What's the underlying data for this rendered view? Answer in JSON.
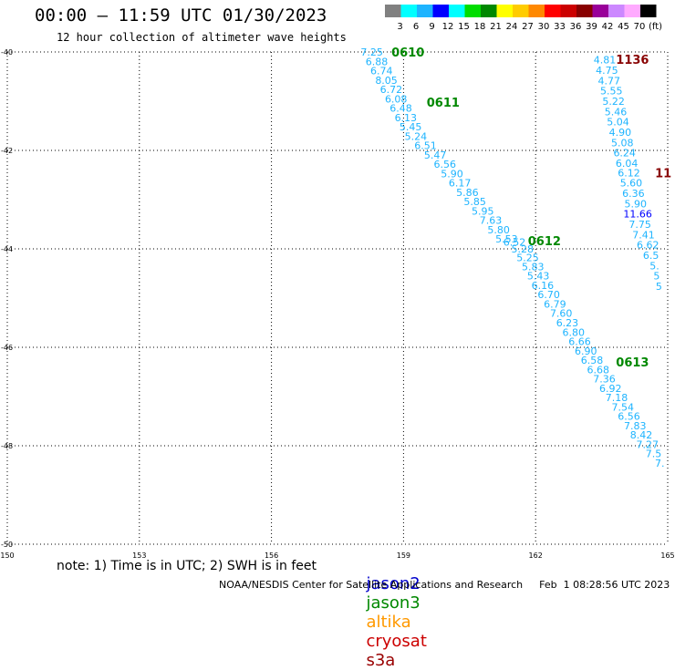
{
  "header": {
    "title": "00:00 – 11:59 UTC 01/30/2023",
    "subtitle": "12 hour collection of altimeter wave heights"
  },
  "colorbar": {
    "labels": [
      "3",
      "6",
      "9",
      "12",
      "15",
      "18",
      "21",
      "24",
      "27",
      "30",
      "33",
      "36",
      "39",
      "42",
      "45",
      "70",
      "(ft)"
    ],
    "colors": [
      "#808080",
      "#00ffff",
      "#1eb4ff",
      "#0000ff",
      "#00ffff",
      "#00dd00",
      "#008800",
      "#ffff00",
      "#ffcc00",
      "#ff8800",
      "#ff0000",
      "#cc0000",
      "#880000",
      "#990099",
      "#cc88ff",
      "#ffaaff",
      "#000000"
    ]
  },
  "footer": {
    "note": "note: 1) Time is in UTC; 2) SWH is in feet",
    "satellites": [
      {
        "name": "jason2",
        "color": "#0000cc"
      },
      {
        "name": "jason3",
        "color": "#008800"
      },
      {
        "name": "altika",
        "color": "#ff9900"
      },
      {
        "name": "cryosat",
        "color": "#cc0000"
      },
      {
        "name": "s3a",
        "color": "#990000"
      }
    ],
    "credit": "NOAA/NESDIS Center for Satellite Applications and Research",
    "generated": "Feb  1 08:28:56 UTC 2023"
  },
  "chart_data": {
    "type": "scatter",
    "title": "00:00 – 11:59 UTC 01/30/2023",
    "subtitle": "12 hour collection of altimeter wave heights",
    "xlim": [
      150,
      165
    ],
    "ylim": [
      -50,
      -40
    ],
    "x_ticks": [
      "150",
      "153",
      "156",
      "159",
      "162",
      "165"
    ],
    "y_ticks": [
      "-40",
      "-42",
      "-44",
      "-46",
      "-48",
      "-50"
    ],
    "grid": true,
    "units": "ft",
    "time_labels": [
      {
        "text": "0610",
        "lon": 159.1,
        "lat": -40.0,
        "color": "#008800"
      },
      {
        "text": "0611",
        "lon": 159.9,
        "lat": -41.02,
        "color": "#008800"
      },
      {
        "text": "0612",
        "lon": 162.2,
        "lat": -43.83,
        "color": "#008800"
      },
      {
        "text": "0613",
        "lon": 164.2,
        "lat": -46.3,
        "color": "#008800"
      },
      {
        "text": "1136",
        "lon": 164.2,
        "lat": -40.15,
        "color": "#880000"
      },
      {
        "text": "11",
        "lon": 164.9,
        "lat": -42.45,
        "color": "#880000"
      }
    ],
    "series": [
      {
        "name": "jason3",
        "color": "#1eb4ff",
        "points": [
          {
            "lon": 158.28,
            "lat": -40.0,
            "swh": "7.25"
          },
          {
            "lon": 158.39,
            "lat": -40.19,
            "swh": "6.88"
          },
          {
            "lon": 158.5,
            "lat": -40.38,
            "swh": "6.74"
          },
          {
            "lon": 158.61,
            "lat": -40.57,
            "swh": "8.05"
          },
          {
            "lon": 158.72,
            "lat": -40.76,
            "swh": "6.72"
          },
          {
            "lon": 158.83,
            "lat": -40.95,
            "swh": "6.08"
          },
          {
            "lon": 158.94,
            "lat": -41.14,
            "swh": "6.48"
          },
          {
            "lon": 159.05,
            "lat": -41.33,
            "swh": "6.13"
          },
          {
            "lon": 159.16,
            "lat": -41.52,
            "swh": "5.45"
          },
          {
            "lon": 159.28,
            "lat": -41.71,
            "swh": "5.24"
          },
          {
            "lon": 159.5,
            "lat": -41.9,
            "swh": "6.51"
          },
          {
            "lon": 159.72,
            "lat": -42.09,
            "swh": "5.47"
          },
          {
            "lon": 159.94,
            "lat": -42.28,
            "swh": "6.56"
          },
          {
            "lon": 160.1,
            "lat": -42.47,
            "swh": "5.90"
          },
          {
            "lon": 160.28,
            "lat": -42.66,
            "swh": "6.17"
          },
          {
            "lon": 160.45,
            "lat": -42.85,
            "swh": "5.86"
          },
          {
            "lon": 160.62,
            "lat": -43.04,
            "swh": "5.85"
          },
          {
            "lon": 160.8,
            "lat": -43.23,
            "swh": "5.95"
          },
          {
            "lon": 160.98,
            "lat": -43.42,
            "swh": "7.63"
          },
          {
            "lon": 161.16,
            "lat": -43.61,
            "swh": "5.80"
          },
          {
            "lon": 161.34,
            "lat": -43.8,
            "swh": "5.53"
          },
          {
            "lon": 161.52,
            "lat": -43.86,
            "swh": "6.52"
          },
          {
            "lon": 161.7,
            "lat": -44.0,
            "swh": "5.28"
          },
          {
            "lon": 161.82,
            "lat": -44.18,
            "swh": "5.25"
          },
          {
            "lon": 161.94,
            "lat": -44.36,
            "swh": "5.83"
          },
          {
            "lon": 162.06,
            "lat": -44.55,
            "swh": "5.43"
          },
          {
            "lon": 162.16,
            "lat": -44.74,
            "swh": "6.16"
          },
          {
            "lon": 162.3,
            "lat": -44.93,
            "swh": "6.70"
          },
          {
            "lon": 162.44,
            "lat": -45.12,
            "swh": "6.79"
          },
          {
            "lon": 162.58,
            "lat": -45.31,
            "swh": "7.60"
          },
          {
            "lon": 162.72,
            "lat": -45.5,
            "swh": "6.23"
          },
          {
            "lon": 162.86,
            "lat": -45.69,
            "swh": "6.80"
          },
          {
            "lon": 163.0,
            "lat": -45.88,
            "swh": "6.66"
          },
          {
            "lon": 163.14,
            "lat": -46.07,
            "swh": "6.90"
          },
          {
            "lon": 163.28,
            "lat": -46.26,
            "swh": "6.58"
          },
          {
            "lon": 163.42,
            "lat": -46.45,
            "swh": "6.68"
          },
          {
            "lon": 163.56,
            "lat": -46.64,
            "swh": "7.36"
          },
          {
            "lon": 163.7,
            "lat": -46.83,
            "swh": "6.92"
          },
          {
            "lon": 163.84,
            "lat": -47.02,
            "swh": "7.18"
          },
          {
            "lon": 163.98,
            "lat": -47.21,
            "swh": "7.54"
          },
          {
            "lon": 164.12,
            "lat": -47.4,
            "swh": "6.56"
          },
          {
            "lon": 164.26,
            "lat": -47.59,
            "swh": "7.83"
          },
          {
            "lon": 164.4,
            "lat": -47.78,
            "swh": "8.42"
          },
          {
            "lon": 164.54,
            "lat": -47.97,
            "swh": "7.27"
          },
          {
            "lon": 164.68,
            "lat": -48.16,
            "swh": "7.5"
          },
          {
            "lon": 164.82,
            "lat": -48.35,
            "swh": "7."
          }
        ]
      },
      {
        "name": "s3a",
        "color": "#1eb4ff",
        "points": [
          {
            "lon": 163.57,
            "lat": -40.16,
            "swh": "4.81"
          },
          {
            "lon": 163.62,
            "lat": -40.37,
            "swh": "4.75"
          },
          {
            "lon": 163.67,
            "lat": -40.58,
            "swh": "4.77"
          },
          {
            "lon": 163.72,
            "lat": -40.79,
            "swh": "5.55"
          },
          {
            "lon": 163.77,
            "lat": -41.0,
            "swh": "5.22"
          },
          {
            "lon": 163.82,
            "lat": -41.21,
            "swh": "5.46"
          },
          {
            "lon": 163.87,
            "lat": -41.42,
            "swh": "5.04"
          },
          {
            "lon": 163.92,
            "lat": -41.63,
            "swh": "4.90"
          },
          {
            "lon": 163.97,
            "lat": -41.84,
            "swh": "5.08"
          },
          {
            "lon": 164.02,
            "lat": -42.05,
            "swh": "6.24"
          },
          {
            "lon": 164.07,
            "lat": -42.26,
            "swh": "6.04"
          },
          {
            "lon": 164.12,
            "lat": -42.45,
            "swh": "6.12"
          },
          {
            "lon": 164.17,
            "lat": -42.66,
            "swh": "5.60"
          },
          {
            "lon": 164.22,
            "lat": -42.87,
            "swh": "6.36"
          },
          {
            "lon": 164.27,
            "lat": -43.08,
            "swh": "5.90"
          },
          {
            "lon": 164.32,
            "lat": -43.29,
            "swh": "11.66"
          },
          {
            "lon": 164.37,
            "lat": -43.5,
            "swh": "7.75"
          },
          {
            "lon": 164.45,
            "lat": -43.71,
            "swh": "7.41"
          },
          {
            "lon": 164.55,
            "lat": -43.92,
            "swh": "6.62"
          },
          {
            "lon": 164.62,
            "lat": -44.13,
            "swh": "6.5"
          },
          {
            "lon": 164.7,
            "lat": -44.34,
            "swh": "5."
          },
          {
            "lon": 164.75,
            "lat": -44.55,
            "swh": "5"
          },
          {
            "lon": 164.8,
            "lat": -44.76,
            "swh": "5"
          }
        ]
      }
    ]
  }
}
